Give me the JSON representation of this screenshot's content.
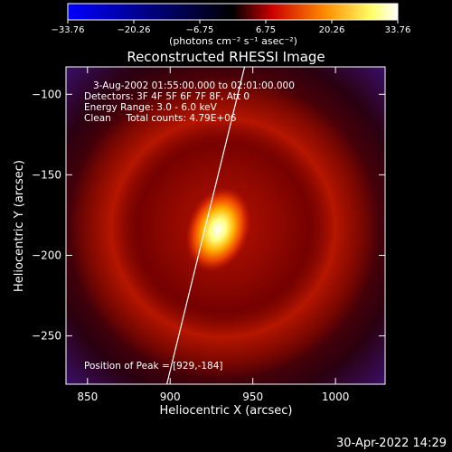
{
  "colorbar": {
    "ticks": [
      "−33.76",
      "−20.26",
      "−6.75",
      "6.75",
      "20.26",
      "33.76"
    ],
    "unit_label": "(photons cm⁻² s⁻¹ asec⁻²)",
    "colors": [
      "#0000ff",
      "#000000",
      "#cc0000",
      "#ff8c00",
      "#ffff66",
      "#ffffff"
    ]
  },
  "chart_data": {
    "type": "heatmap",
    "title": "Reconstructed RHESSI Image",
    "xlabel": "Heliocentric X (arcsec)",
    "ylabel": "Heliocentric Y (arcsec)",
    "xlim": [
      837,
      1030
    ],
    "ylim": [
      -280,
      -83
    ],
    "x_ticks": [
      850,
      900,
      950,
      1000
    ],
    "y_ticks": [
      -100,
      -150,
      -200,
      -250
    ],
    "x_tick_labels": [
      "850",
      "900",
      "950",
      "1000"
    ],
    "y_tick_labels": [
      "−100",
      "−150",
      "−200",
      "−250"
    ],
    "peak": [
      929,
      -184
    ],
    "limb_line": [
      [
        898,
        -280
      ],
      [
        945,
        -83
      ]
    ],
    "annotations": {
      "time_range": "3-Aug-2002 01:55:00.000  to  02:01:00.000",
      "detectors": "Detectors: 3F 4F 5F 6F 7F 8F, Att 0",
      "energy_range": "Energy Range: 3.0 - 6.0 keV",
      "clean": "Clean     Total counts: 4.79E+06",
      "peak_position": "Position of Peak = [929,-184]"
    }
  },
  "footer": {
    "timestamp": "30-Apr-2022 14:29"
  }
}
